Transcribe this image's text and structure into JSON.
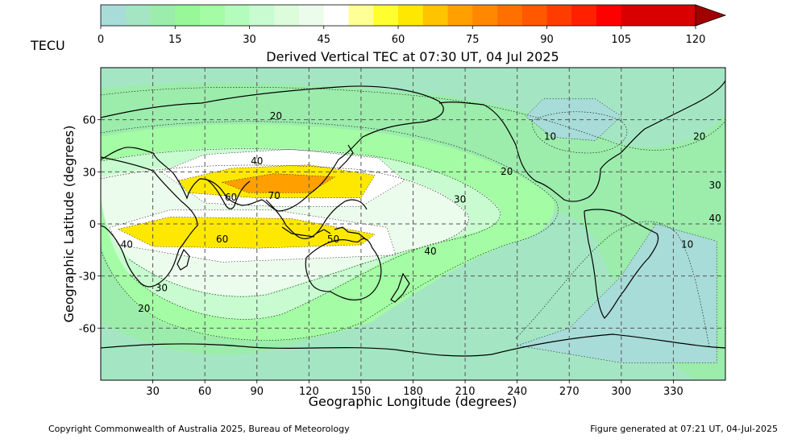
{
  "figure": {
    "title": "Derived Vertical TEC at 07:30 UT, 04 Jul 2025",
    "xlabel": "Geographic Longitude (degrees)",
    "ylabel": "Geographic Latitude (degrees)",
    "copyright": "Copyright Commonwealth of Australia 2025, Bureau of Meteorology",
    "generated": "Figure generated at 07:21 UT, 04-Jul-2025"
  },
  "colorbar": {
    "unit_label": "TECU",
    "ticks": [
      "0",
      "15",
      "30",
      "45",
      "60",
      "75",
      "90",
      "105",
      "120"
    ],
    "tick_values": [
      0,
      15,
      30,
      45,
      60,
      75,
      90,
      105,
      120
    ],
    "range": [
      0,
      120
    ],
    "extend": "max",
    "colors": [
      "#a8dcd8",
      "#a4e6c4",
      "#9cecac",
      "#98f898",
      "#a4fca4",
      "#b4fcbc",
      "#c8fcd0",
      "#dcfcdc",
      "#ecfcec",
      "#ffffff",
      "#ffff98",
      "#ffff30",
      "#ffe800",
      "#ffc400",
      "#ffa000",
      "#ff8800",
      "#ff7000",
      "#ff5800",
      "#ff3c00",
      "#ff2000",
      "#ff0000",
      "#d80000",
      "#a00000"
    ]
  },
  "chart_data": {
    "type": "contour-map",
    "variable": "TECU",
    "xlim": [
      0,
      360
    ],
    "ylim": [
      -90,
      90
    ],
    "x_ticks": [
      30,
      60,
      90,
      120,
      150,
      180,
      210,
      240,
      270,
      300,
      330
    ],
    "x_tick_labels": [
      "30",
      "60",
      "90",
      "120",
      "150",
      "180",
      "210",
      "240",
      "270",
      "300",
      "330"
    ],
    "y_ticks": [
      60,
      30,
      0,
      -30,
      -60
    ],
    "y_tick_labels": [
      "60",
      "30",
      "0",
      "-30",
      "-60"
    ],
    "grid": true,
    "contour_labels": [
      {
        "text": "20",
        "lon": 101,
        "lat": 62
      },
      {
        "text": "40",
        "lon": 90,
        "lat": 36
      },
      {
        "text": "60",
        "lon": 75,
        "lat": 15
      },
      {
        "text": "70",
        "lon": 100,
        "lat": 16
      },
      {
        "text": "60",
        "lon": 70,
        "lat": -9
      },
      {
        "text": "50",
        "lon": 134,
        "lat": -9
      },
      {
        "text": "40",
        "lon": 15,
        "lat": -12
      },
      {
        "text": "30",
        "lon": 35,
        "lat": -37
      },
      {
        "text": "20",
        "lon": 25,
        "lat": -49
      },
      {
        "text": "40",
        "lon": 190,
        "lat": -16
      },
      {
        "text": "30",
        "lon": 207,
        "lat": 14
      },
      {
        "text": "20",
        "lon": 234,
        "lat": 30
      },
      {
        "text": "10",
        "lon": 259,
        "lat": 50
      },
      {
        "text": "20",
        "lon": 345,
        "lat": 50
      },
      {
        "text": "30",
        "lon": 354,
        "lat": 22
      },
      {
        "text": "40",
        "lon": 354,
        "lat": 3
      },
      {
        "text": "10",
        "lon": 338,
        "lat": -12
      }
    ],
    "regions": [
      {
        "level": 10,
        "color": "#a8dcd8",
        "desc": "low TEC over South Atlantic / Antarctica",
        "poly": [
          [
            240,
            -70
          ],
          [
            300,
            -80
          ],
          [
            355,
            -80
          ],
          [
            355,
            -10
          ],
          [
            320,
            0
          ],
          [
            300,
            -30
          ],
          [
            270,
            -60
          ],
          [
            240,
            -70
          ]
        ]
      },
      {
        "level": 10,
        "color": "#a8dcd8",
        "desc": "low TEC over North America",
        "poly": [
          [
            245,
            62
          ],
          [
            255,
            72
          ],
          [
            285,
            72
          ],
          [
            300,
            62
          ],
          [
            285,
            48
          ],
          [
            260,
            50
          ],
          [
            245,
            62
          ]
        ]
      },
      {
        "level": 50,
        "color": "#ffffff",
        "desc": "northern crest",
        "poly": [
          [
            35,
            30
          ],
          [
            60,
            40
          ],
          [
            110,
            43
          ],
          [
            160,
            38
          ],
          [
            175,
            25
          ],
          [
            150,
            10
          ],
          [
            100,
            10
          ],
          [
            60,
            12
          ],
          [
            35,
            30
          ]
        ]
      },
      {
        "level": 60,
        "color": "#ffe800",
        "desc": "northern crest core",
        "poly": [
          [
            45,
            25
          ],
          [
            75,
            32
          ],
          [
            120,
            34
          ],
          [
            158,
            28
          ],
          [
            150,
            15
          ],
          [
            90,
            15
          ],
          [
            50,
            18
          ],
          [
            45,
            25
          ]
        ]
      },
      {
        "level": 70,
        "color": "#ffa000",
        "desc": "northern crest peak",
        "poly": [
          [
            70,
            24
          ],
          [
            100,
            29
          ],
          [
            135,
            27
          ],
          [
            120,
            18
          ],
          [
            85,
            18
          ],
          [
            70,
            24
          ]
        ]
      },
      {
        "level": 50,
        "color": "#ffffff",
        "desc": "southern crest",
        "poly": [
          [
            5,
            -2
          ],
          [
            40,
            8
          ],
          [
            100,
            8
          ],
          [
            165,
            -2
          ],
          [
            170,
            -18
          ],
          [
            120,
            -20
          ],
          [
            70,
            -22
          ],
          [
            10,
            -12
          ],
          [
            5,
            -2
          ]
        ]
      },
      {
        "level": 60,
        "color": "#ffe800",
        "desc": "southern crest core",
        "poly": [
          [
            10,
            -3
          ],
          [
            40,
            4
          ],
          [
            110,
            3
          ],
          [
            158,
            -6
          ],
          [
            150,
            -12
          ],
          [
            90,
            -14
          ],
          [
            30,
            -13
          ],
          [
            10,
            -3
          ]
        ]
      }
    ]
  }
}
